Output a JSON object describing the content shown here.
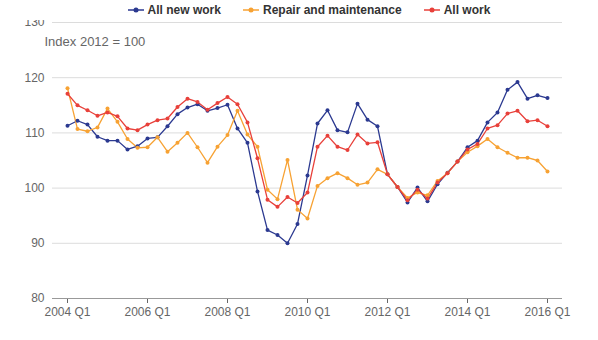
{
  "chart_data": {
    "type": "line",
    "subtitle": "Index 2012 = 100",
    "categories": [
      "2004 Q1",
      null,
      null,
      null,
      null,
      null,
      null,
      null,
      "2006 Q1",
      null,
      null,
      null,
      null,
      null,
      null,
      null,
      "2008 Q1",
      null,
      null,
      null,
      null,
      null,
      null,
      null,
      "2010 Q1",
      null,
      null,
      null,
      null,
      null,
      null,
      null,
      "2012 Q1",
      null,
      null,
      null,
      null,
      null,
      null,
      null,
      "2014 Q1",
      null,
      null,
      null,
      null,
      null,
      null,
      null,
      "2016 Q1"
    ],
    "series": [
      {
        "name": "All new work",
        "color": "#2b3990",
        "marker": "circle",
        "values": [
          111.3,
          112.2,
          111.5,
          109.3,
          108.6,
          108.6,
          107.0,
          107.6,
          109.0,
          109.2,
          111.2,
          113.4,
          114.6,
          115.2,
          114.0,
          114.5,
          115.1,
          110.8,
          108.2,
          99.4,
          92.4,
          91.5,
          90.0,
          93.5,
          102.3,
          111.7,
          114.1,
          110.5,
          110.1,
          115.3,
          112.4,
          111.2,
          102.5,
          100.2,
          97.4,
          100.1,
          97.6,
          100.7,
          102.8,
          104.8,
          107.4,
          108.6,
          111.9,
          113.7,
          117.8,
          119.2,
          116.2,
          116.8,
          116.3
        ]
      },
      {
        "name": "Repair and maintenance",
        "color": "#f7a233",
        "marker": "circle",
        "values": [
          118.1,
          110.7,
          110.3,
          111.0,
          114.4,
          112.0,
          108.9,
          107.3,
          107.4,
          109.2,
          106.6,
          108.2,
          110.0,
          107.4,
          104.6,
          107.5,
          109.6,
          114.0,
          109.7,
          107.5,
          99.7,
          98.0,
          105.1,
          96.1,
          94.5,
          100.4,
          101.8,
          102.7,
          101.8,
          100.6,
          101.0,
          103.4,
          102.5,
          100.2,
          98.2,
          99.2,
          98.7,
          101.3,
          102.7,
          104.8,
          106.5,
          107.6,
          108.9,
          107.4,
          106.4,
          105.5,
          105.5,
          105.0,
          103.0
        ]
      },
      {
        "name": "All work",
        "color": "#e8403a",
        "marker": "circle",
        "values": [
          117.1,
          115.0,
          114.1,
          113.1,
          113.7,
          113.0,
          110.8,
          110.5,
          111.5,
          112.3,
          112.6,
          114.7,
          116.2,
          115.6,
          114.2,
          115.4,
          116.5,
          115.2,
          111.9,
          105.4,
          97.9,
          96.6,
          98.4,
          97.3,
          99.2,
          107.5,
          109.5,
          107.5,
          106.9,
          109.7,
          108.1,
          108.3,
          102.5,
          100.2,
          97.8,
          99.7,
          98.1,
          101.0,
          102.7,
          104.8,
          107.0,
          108.0,
          110.8,
          111.4,
          113.5,
          114.0,
          112.1,
          112.3,
          111.2
        ]
      }
    ],
    "ylim": [
      80,
      130
    ],
    "yticks": [
      80,
      90,
      100,
      110,
      120,
      130
    ],
    "grid": true,
    "legend": "top"
  }
}
